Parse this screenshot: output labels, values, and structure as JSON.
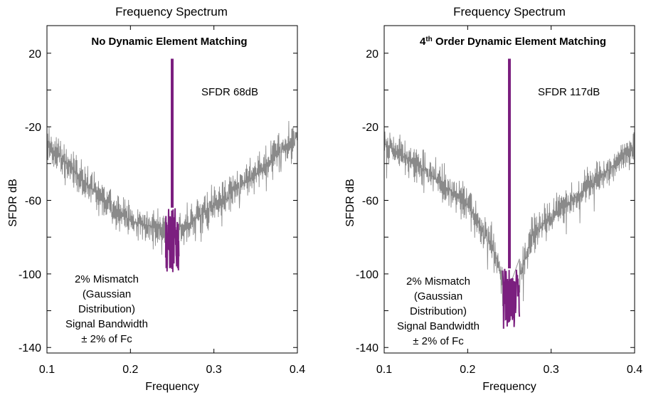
{
  "chart_data": [
    {
      "type": "line",
      "title": "Frequency Spectrum",
      "xlabel": "Frequency",
      "ylabel": "SFDR dB",
      "xlim": [
        0.1,
        0.4
      ],
      "ylim": [
        -143,
        35
      ],
      "xticks": [
        "0.1",
        "0.2",
        "0.3",
        "0.4"
      ],
      "yticks": [
        "20",
        "-20",
        "-60",
        "-100",
        "-140"
      ],
      "inner_title": "No Dynamic Element Matching",
      "sfdr_label": "SFDR 68dB",
      "annotation_lines": [
        "2% Mismatch",
        "(Gaussian",
        "Distribution)",
        "Signal Bandwidth",
        "± 2% of Fc"
      ],
      "colors": {
        "noise": "#8a8a8a",
        "signal": "#7b1f7f"
      },
      "signal": {
        "center": 0.25,
        "band": [
          0.242,
          0.258
        ],
        "peak": 17,
        "band_top": -64,
        "band_bottom": -100
      },
      "noise_floor": [
        [
          0.1,
          -29
        ],
        [
          0.15,
          -52
        ],
        [
          0.2,
          -71
        ],
        [
          0.24,
          -76
        ],
        [
          0.27,
          -73
        ],
        [
          0.3,
          -62
        ],
        [
          0.35,
          -46
        ],
        [
          0.4,
          -24
        ]
      ],
      "grid": false
    },
    {
      "type": "line",
      "title": "Frequency Spectrum",
      "xlabel": "Frequency",
      "ylabel": "SFDR dB",
      "xlim": [
        0.1,
        0.4
      ],
      "ylim": [
        -143,
        35
      ],
      "xticks": [
        "0.1",
        "0.2",
        "0.3",
        "0.4"
      ],
      "yticks": [
        "20",
        "-20",
        "-60",
        "-100",
        "-140"
      ],
      "inner_title_sup": "th",
      "inner_title_pre": "4",
      "inner_title_post": " Order Dynamic Element Matching",
      "sfdr_label": "SFDR 117dB",
      "annotation_lines": [
        "2% Mismatch",
        "(Gaussian",
        "Distribution)",
        "Signal Bandwidth",
        "± 2% of Fc"
      ],
      "colors": {
        "noise": "#8a8a8a",
        "signal": "#7b1f7f"
      },
      "signal": {
        "center": 0.25,
        "band": [
          0.242,
          0.262
        ],
        "peak": 17,
        "band_top": -97,
        "band_bottom": -130
      },
      "noise_floor": [
        [
          0.1,
          -29
        ],
        [
          0.15,
          -44
        ],
        [
          0.2,
          -62
        ],
        [
          0.23,
          -85
        ],
        [
          0.245,
          -108
        ],
        [
          0.26,
          -105
        ],
        [
          0.28,
          -76
        ],
        [
          0.32,
          -62
        ],
        [
          0.36,
          -47
        ],
        [
          0.4,
          -30
        ]
      ],
      "grid": false
    }
  ]
}
